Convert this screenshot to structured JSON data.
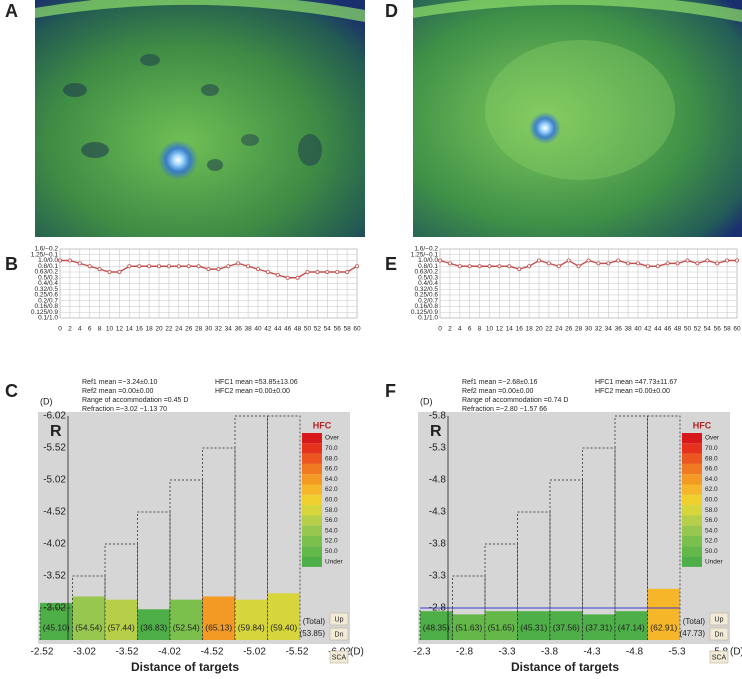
{
  "figure": {
    "photo_panels": [
      "A",
      "D"
    ]
  },
  "chart_data": [
    {
      "type": "line",
      "panel": "B",
      "color": "#c0504d",
      "grid": true,
      "x": [
        0,
        2,
        4,
        6,
        8,
        10,
        12,
        14,
        16,
        18,
        20,
        22,
        24,
        26,
        28,
        30,
        32,
        34,
        36,
        38,
        40,
        42,
        44,
        46,
        48,
        50,
        52,
        54,
        56,
        58,
        60
      ],
      "values": [
        0,
        0,
        0.05,
        0.1,
        0.15,
        0.2,
        0.2,
        0.1,
        0.1,
        0.1,
        0.1,
        0.1,
        0.1,
        0.1,
        0.1,
        0.15,
        0.15,
        0.1,
        0.05,
        0.1,
        0.15,
        0.2,
        0.25,
        0.3,
        0.3,
        0.2,
        0.2,
        0.2,
        0.2,
        0.2,
        0.1
      ],
      "xlim": [
        0,
        60
      ],
      "xticks": [
        0,
        2,
        4,
        6,
        8,
        10,
        12,
        14,
        16,
        18,
        20,
        22,
        24,
        26,
        28,
        30,
        32,
        34,
        36,
        38,
        40,
        42,
        44,
        46,
        48,
        50,
        52,
        54,
        56,
        58,
        60
      ],
      "ylim": [
        1.0,
        -0.2
      ],
      "yticks": [
        {
          "value": -0.2,
          "label": "1.6/−0.2"
        },
        {
          "value": -0.1,
          "label": "1.25/−0.1"
        },
        {
          "value": 0,
          "label": "1.0/0.0"
        },
        {
          "value": 0.1,
          "label": "0.8/0.1"
        },
        {
          "value": 0.2,
          "label": "0.63/0.2"
        },
        {
          "value": 0.3,
          "label": "0.5/0.3"
        },
        {
          "value": 0.4,
          "label": "0.4/0.4"
        },
        {
          "value": 0.5,
          "label": "0.32/0.5"
        },
        {
          "value": 0.6,
          "label": "0.25/0.6"
        },
        {
          "value": 0.7,
          "label": "0.2/0.7"
        },
        {
          "value": 0.8,
          "label": "0.16/0.8"
        },
        {
          "value": 0.9,
          "label": "0.125/0.9"
        },
        {
          "value": 1.0,
          "label": "0.1/1.0"
        }
      ]
    },
    {
      "type": "line",
      "panel": "E",
      "color": "#c0504d",
      "grid": true,
      "x": [
        0,
        2,
        4,
        6,
        8,
        10,
        12,
        14,
        16,
        18,
        20,
        22,
        24,
        26,
        28,
        30,
        32,
        34,
        36,
        38,
        40,
        42,
        44,
        46,
        48,
        50,
        52,
        54,
        56,
        58,
        60
      ],
      "values": [
        0,
        0.05,
        0.1,
        0.1,
        0.1,
        0.1,
        0.1,
        0.1,
        0.15,
        0.1,
        0,
        0.05,
        0.1,
        0,
        0.1,
        0,
        0.05,
        0.05,
        0,
        0.05,
        0.05,
        0.1,
        0.1,
        0.05,
        0.05,
        0,
        0.05,
        0,
        0.05,
        0,
        0
      ],
      "xlim": [
        0,
        60
      ],
      "xticks": [
        0,
        2,
        4,
        6,
        8,
        10,
        12,
        14,
        16,
        18,
        20,
        22,
        24,
        26,
        28,
        30,
        32,
        34,
        36,
        38,
        40,
        42,
        44,
        46,
        48,
        50,
        52,
        54,
        56,
        58,
        60
      ],
      "ylim": [
        1.0,
        -0.2
      ],
      "yticks": [
        {
          "value": -0.2,
          "label": "1.6/−0.2"
        },
        {
          "value": -0.1,
          "label": "1.25/−0.1"
        },
        {
          "value": 0,
          "label": "1.0/0.0"
        },
        {
          "value": 0.1,
          "label": "0.8/0.1"
        },
        {
          "value": 0.2,
          "label": "0.63/0.2"
        },
        {
          "value": 0.3,
          "label": "0.5/0.3"
        },
        {
          "value": 0.4,
          "label": "0.4/0.4"
        },
        {
          "value": 0.5,
          "label": "0.32/0.5"
        },
        {
          "value": 0.6,
          "label": "0.25/0.6"
        },
        {
          "value": 0.7,
          "label": "0.2/0.7"
        },
        {
          "value": 0.8,
          "label": "0.16/0.8"
        },
        {
          "value": 0.9,
          "label": "0.125/0.9"
        },
        {
          "value": 1.0,
          "label": "0.1/1.0"
        }
      ]
    },
    {
      "type": "heatmap",
      "panel": "C",
      "eye": "R",
      "y_unit": "(D)",
      "x_unit": "(D)",
      "xlabel": "Distance of targets",
      "stats_left": [
        "Ref1 mean =−3.24±0.10",
        "Ref2 mean =0.00±0.00",
        "Range of accommodation =0.45 D",
        "Refraction =−3.02 −1.13 70"
      ],
      "stats_right": [
        "HFC1 mean =53.85±13.06",
        "HFC2 mean =0.00±0.00"
      ],
      "ylim": [
        -2.52,
        -6.02
      ],
      "yticks": [
        -3.02,
        -3.52,
        -4.02,
        -4.52,
        -5.02,
        -5.52,
        -6.02
      ],
      "xticks": [
        -2.52,
        -3.02,
        -3.52,
        -4.02,
        -4.52,
        -5.02,
        -5.52,
        -6.02
      ],
      "stimulus": [
        -3.02,
        -3.52,
        -4.02,
        -4.52,
        -5.02,
        -5.52,
        -6.02,
        -6.02
      ],
      "response": [
        -3.1,
        -3.2,
        -3.15,
        -3.0,
        -3.15,
        -3.2,
        -3.15,
        -3.25
      ],
      "values": [
        45.1,
        54.54,
        57.44,
        36.83,
        52.54,
        65.13,
        59.84,
        59.4
      ],
      "value_labels": [
        "(45.10)",
        "(54.54)",
        "(57.44)",
        "(36.83)",
        "(52.54)",
        "(65.13)",
        "(59.84)",
        "(59.40)"
      ],
      "total_title": "(Total)",
      "total": 53.85,
      "total_label": "(53.85)",
      "buttons": [
        "Up",
        "Dn",
        "SCA"
      ],
      "color_scale": {
        "title": "HFC",
        "ticks": [
          "Over",
          {
            "value": 70,
            "label": "70.0"
          },
          {
            "value": 68,
            "label": "68.0"
          },
          {
            "value": 66,
            "label": "66.0"
          },
          {
            "value": 64,
            "label": "64.0"
          },
          {
            "value": 62,
            "label": "62.0"
          },
          {
            "value": 60,
            "label": "60.0"
          },
          {
            "value": 58,
            "label": "58.0"
          },
          {
            "value": 56,
            "label": "56.0"
          },
          {
            "value": 54,
            "label": "54.0"
          },
          {
            "value": 52,
            "label": "52.0"
          },
          {
            "value": 50,
            "label": "50.0"
          },
          "Under"
        ],
        "colors": [
          "#d7191c",
          "#e5321d",
          "#ec561f",
          "#f07a22",
          "#f39a25",
          "#f6b62a",
          "#f0cf30",
          "#d6d53b",
          "#b7cf48",
          "#98c74f",
          "#7bbf4d",
          "#64b749",
          "#4eae47"
        ]
      }
    },
    {
      "type": "heatmap",
      "panel": "F",
      "eye": "R",
      "y_unit": "(D)",
      "x_unit": "(D)",
      "xlabel": "Distance of targets",
      "stats_left": [
        "Ref1 mean =−2.68±0.16",
        "Ref2 mean =0.00±0.00",
        "Range of accommodation =0.74 D",
        "Refraction =−2.80 −1.57 66"
      ],
      "stats_right": [
        "HFC1 mean =47.73±11.67",
        "HFC2 mean =0.00±0.00"
      ],
      "ylim": [
        -2.3,
        -5.8
      ],
      "yticks": [
        -2.8,
        -3.3,
        -3.8,
        -4.3,
        -4.8,
        -5.3,
        -5.8
      ],
      "xticks": [
        -2.3,
        -2.8,
        -3.3,
        -3.8,
        -4.3,
        -4.8,
        -5.3,
        -5.8
      ],
      "stimulus": [
        -2.8,
        -3.3,
        -3.8,
        -4.3,
        -4.8,
        -5.3,
        -5.8,
        -5.8
      ],
      "response": [
        -2.75,
        -2.7,
        -2.75,
        -2.75,
        -2.75,
        -2.7,
        -2.75,
        -3.1
      ],
      "reference_line": -2.8,
      "values": [
        48.35,
        51.63,
        51.65,
        45.31,
        37.56,
        37.31,
        47.14,
        62.91
      ],
      "value_labels": [
        "(48.35)",
        "(51.63)",
        "(51.65)",
        "(45.31)",
        "(37.56)",
        "(37.31)",
        "(47.14)",
        "(62.91)"
      ],
      "total_title": "(Total)",
      "total": 47.73,
      "total_label": "(47.73)",
      "buttons": [
        "Up",
        "Dn",
        "SCA"
      ],
      "color_scale": {
        "title": "HFC",
        "ticks": [
          "Over",
          {
            "value": 70,
            "label": "70.0"
          },
          {
            "value": 68,
            "label": "68.0"
          },
          {
            "value": 66,
            "label": "66.0"
          },
          {
            "value": 64,
            "label": "64.0"
          },
          {
            "value": 62,
            "label": "62.0"
          },
          {
            "value": 60,
            "label": "60.0"
          },
          {
            "value": 58,
            "label": "58.0"
          },
          {
            "value": 56,
            "label": "56.0"
          },
          {
            "value": 54,
            "label": "54.0"
          },
          {
            "value": 52,
            "label": "52.0"
          },
          {
            "value": 50,
            "label": "50.0"
          },
          "Under"
        ],
        "colors": [
          "#d7191c",
          "#e5321d",
          "#ec561f",
          "#f07a22",
          "#f39a25",
          "#f6b62a",
          "#f0cf30",
          "#d6d53b",
          "#b7cf48",
          "#98c74f",
          "#7bbf4d",
          "#64b749",
          "#4eae47"
        ]
      }
    }
  ]
}
